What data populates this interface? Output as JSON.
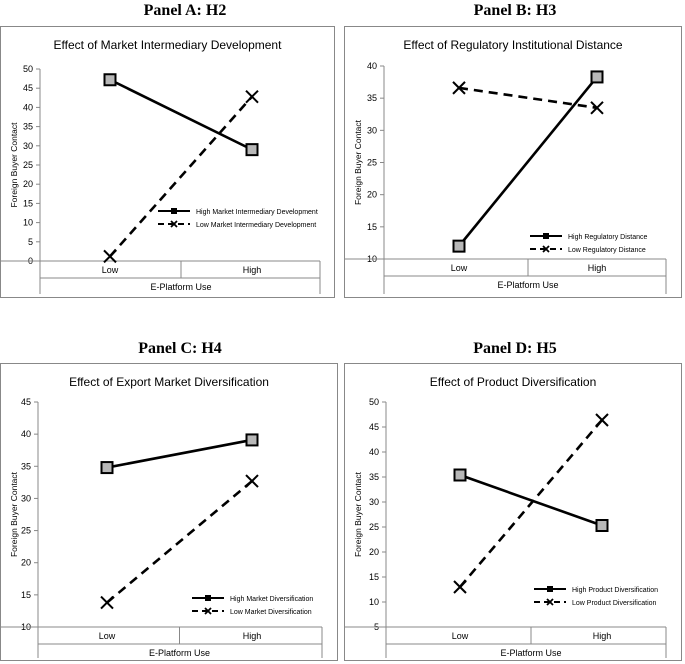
{
  "panels": [
    {
      "heading": "Panel A: H2",
      "chart_data": {
        "type": "line",
        "title": "Effect of Market Intermediary Development",
        "xlabel": "E-Platform Use",
        "ylabel": "Foreign Buyer Contact",
        "categories": [
          "Low",
          "High"
        ],
        "yticks": [
          0,
          5,
          10,
          15,
          20,
          25,
          30,
          35,
          40,
          45,
          50
        ],
        "ylim": [
          0,
          50
        ],
        "series": [
          {
            "name": "High Market Intermediary Development",
            "values": [
              47.2,
              29.0
            ],
            "style": "solid",
            "marker": "square"
          },
          {
            "name": "Low Market Intermediary Development",
            "values": [
              1.2,
              42.8
            ],
            "style": "dashed",
            "marker": "x"
          }
        ],
        "legend": "bottom-right"
      }
    },
    {
      "heading": "Panel B: H3",
      "chart_data": {
        "type": "line",
        "title": "Effect of Regulatory Institutional  Distance",
        "xlabel": "E-Platform Use",
        "ylabel": "Foreign Buyer Contact",
        "categories": [
          "Low",
          "High"
        ],
        "yticks": [
          10,
          15,
          20,
          25,
          30,
          35,
          40
        ],
        "ylim": [
          10,
          40
        ],
        "series": [
          {
            "name": "High Regulatory Distance",
            "values": [
              12.0,
              38.3
            ],
            "style": "solid",
            "marker": "square"
          },
          {
            "name": "Low Regulatory Distance",
            "values": [
              36.6,
              33.5
            ],
            "style": "dashed",
            "marker": "x"
          }
        ],
        "legend": "bottom-right"
      }
    },
    {
      "heading": "Panel C: H4",
      "chart_data": {
        "type": "line",
        "title": "Effect of Export Market Diversification",
        "xlabel": "E-Platform Use",
        "ylabel": "Foreign Buyer Contact",
        "categories": [
          "Low",
          "High"
        ],
        "yticks": [
          10,
          15,
          20,
          25,
          30,
          35,
          40,
          45
        ],
        "ylim": [
          10,
          45
        ],
        "series": [
          {
            "name": "High Market Diversification",
            "values": [
              34.8,
              39.1
            ],
            "style": "solid",
            "marker": "square"
          },
          {
            "name": "Low Market Diversification",
            "values": [
              13.8,
              32.7
            ],
            "style": "dashed",
            "marker": "x"
          }
        ],
        "legend": "bottom-right"
      }
    },
    {
      "heading": "Panel D: H5",
      "chart_data": {
        "type": "line",
        "title": "Effect of Product Diversification",
        "xlabel": "E-Platform Use",
        "ylabel": "Foreign Buyer Contact",
        "categories": [
          "Low",
          "High"
        ],
        "yticks": [
          5,
          10,
          15,
          20,
          25,
          30,
          35,
          40,
          45,
          50
        ],
        "ylim": [
          5,
          50
        ],
        "series": [
          {
            "name": "High Product Diversification",
            "values": [
              35.4,
              25.3
            ],
            "style": "solid",
            "marker": "square"
          },
          {
            "name": "Low Product Diversification",
            "values": [
              13.0,
              46.4
            ],
            "style": "dashed",
            "marker": "x"
          }
        ],
        "legend": "bottom-right"
      }
    }
  ]
}
